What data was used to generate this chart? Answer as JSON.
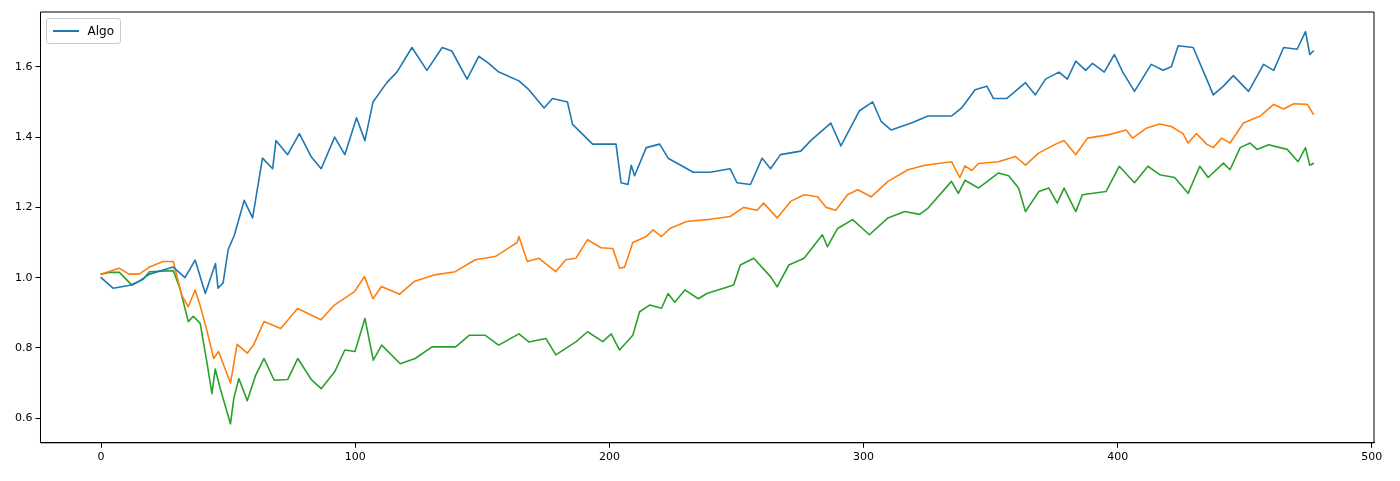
{
  "chart_data": {
    "type": "line",
    "legend": "top left",
    "grid": false,
    "xlim": [
      -23.85,
      500.85
    ],
    "xticks": [
      0,
      100,
      200,
      300,
      400,
      500
    ],
    "ylim": [
      0.53,
      1.756
    ],
    "yticks": [
      {
        "value": 0.6,
        "label": "0.6"
      },
      {
        "value": 0.8,
        "label": "0.8"
      },
      {
        "value": 1.0,
        "label": "1.0"
      },
      {
        "value": 1.2,
        "label": "1.2"
      },
      {
        "value": 1.4,
        "label": "1.4"
      },
      {
        "value": 1.6,
        "label": "1.6"
      }
    ],
    "series": [
      {
        "name": "Algo",
        "color": "#1f77b4",
        "x": [
          0,
          4.7,
          12.5,
          15,
          19,
          28.4,
          33,
          37,
          41,
          45,
          46,
          48,
          50,
          52.4,
          56.3,
          59.6,
          63.5,
          67.5,
          68.8,
          73.4,
          78,
          82.6,
          86.6,
          91.9,
          95.9,
          100.5,
          103.8,
          107,
          112.4,
          116.4,
          122.3,
          128.2,
          134.2,
          138,
          144,
          148.6,
          152.5,
          156.5,
          164.4,
          168.3,
          174.3,
          177.6,
          183.5,
          185.5,
          193.4,
          202.6,
          204.6,
          207.3,
          208.6,
          209.9,
          214.5,
          219.8,
          223.1,
          233,
          239.6,
          247.5,
          250.2,
          255.5,
          260.1,
          263.4,
          267.3,
          275.3,
          279.2,
          287.1,
          291.1,
          298.4,
          303.6,
          306.9,
          310.9,
          318.8,
          325.4,
          334.6,
          338.6,
          343.9,
          348.5,
          351.1,
          356.4,
          363.7,
          367.6,
          371.6,
          376.9,
          380.2,
          383.5,
          387.4,
          390.1,
          394.7,
          398.7,
          402,
          406.6,
          413.2,
          417.8,
          421.1,
          423.8,
          429.7,
          435.6,
          437.6,
          441.6,
          445.5,
          451.5,
          457.4,
          461.4,
          465.3,
          470.6,
          473.9,
          475.6,
          477
        ],
        "values": [
          1.0,
          0.97,
          0.98,
          0.99,
          1.01,
          1.03,
          1.0,
          1.05,
          0.955,
          1.04,
          0.97,
          0.985,
          1.08,
          1.12,
          1.22,
          1.17,
          1.34,
          1.31,
          1.39,
          1.35,
          1.41,
          1.345,
          1.31,
          1.4,
          1.35,
          1.455,
          1.39,
          1.5,
          1.555,
          1.585,
          1.655,
          1.59,
          1.655,
          1.645,
          1.565,
          1.63,
          1.61,
          1.585,
          1.56,
          1.535,
          1.483,
          1.51,
          1.5,
          1.436,
          1.38,
          1.38,
          1.27,
          1.265,
          1.32,
          1.29,
          1.37,
          1.38,
          1.34,
          1.3,
          1.3,
          1.31,
          1.27,
          1.265,
          1.34,
          1.31,
          1.35,
          1.36,
          1.39,
          1.44,
          1.375,
          1.475,
          1.5,
          1.445,
          1.42,
          1.44,
          1.46,
          1.46,
          1.483,
          1.535,
          1.545,
          1.51,
          1.51,
          1.555,
          1.52,
          1.565,
          1.585,
          1.565,
          1.616,
          1.59,
          1.61,
          1.585,
          1.635,
          1.585,
          1.53,
          1.607,
          1.59,
          1.6,
          1.66,
          1.655,
          1.555,
          1.52,
          1.545,
          1.575,
          1.53,
          1.607,
          1.59,
          1.655,
          1.65,
          1.7,
          1.635,
          1.645
        ]
      },
      {
        "color": "#ff7f0e",
        "x": [
          0,
          7,
          11,
          15,
          19,
          24.4,
          28.4,
          31.7,
          34.3,
          37,
          39,
          41.6,
          44.3,
          46.2,
          50.9,
          53.5,
          57.5,
          60.1,
          64.1,
          70.7,
          77.3,
          86.5,
          91.8,
          99.7,
          103.6,
          107,
          110.3,
          117.5,
          123.4,
          131.3,
          139.3,
          147.2,
          155.1,
          163.7,
          164.4,
          167.7,
          172.3,
          178.9,
          182.8,
          186.8,
          191.4,
          196.7,
          201.3,
          204,
          206,
          209.2,
          214.5,
          217.2,
          220.5,
          223.8,
          230.4,
          238.3,
          247.5,
          252.8,
          258.1,
          260.7,
          266,
          271.3,
          276.6,
          281.9,
          285.2,
          289.1,
          293.7,
          297.7,
          303,
          309.6,
          317.5,
          324.1,
          334.6,
          337.9,
          339.9,
          342.6,
          345.2,
          353.1,
          359.7,
          363.7,
          369,
          375.6,
          378.9,
          383.5,
          388.1,
          396.7,
          403.3,
          405.9,
          411.2,
          416.5,
          421.1,
          425.7,
          427.7,
          431,
          435,
          437.6,
          440.9,
          444.2,
          449.5,
          456.1,
          461.4,
          465.3,
          469.3,
          474.6,
          477
        ],
        "values": [
          1.01,
          1.027,
          1.01,
          1.01,
          1.03,
          1.046,
          1.046,
          0.95,
          0.917,
          0.965,
          0.92,
          0.85,
          0.77,
          0.79,
          0.7,
          0.81,
          0.785,
          0.81,
          0.875,
          0.855,
          0.912,
          0.88,
          0.922,
          0.96,
          1.003,
          0.94,
          0.975,
          0.953,
          0.99,
          1.008,
          1.017,
          1.051,
          1.06,
          1.1,
          1.117,
          1.046,
          1.055,
          1.017,
          1.051,
          1.055,
          1.108,
          1.085,
          1.083,
          1.027,
          1.03,
          1.1,
          1.117,
          1.136,
          1.117,
          1.14,
          1.16,
          1.165,
          1.174,
          1.2,
          1.192,
          1.212,
          1.17,
          1.217,
          1.236,
          1.23,
          1.2,
          1.192,
          1.236,
          1.25,
          1.23,
          1.274,
          1.307,
          1.32,
          1.33,
          1.285,
          1.318,
          1.305,
          1.325,
          1.33,
          1.345,
          1.32,
          1.355,
          1.38,
          1.39,
          1.35,
          1.397,
          1.407,
          1.42,
          1.397,
          1.425,
          1.437,
          1.43,
          1.41,
          1.383,
          1.41,
          1.38,
          1.37,
          1.397,
          1.383,
          1.44,
          1.46,
          1.493,
          1.48,
          1.495,
          1.493,
          1.465
        ]
      },
      {
        "color": "#2ca02c",
        "x": [
          0,
          3.3,
          7.2,
          11.9,
          16.5,
          19,
          28.4,
          31,
          34.3,
          36.3,
          39,
          41.6,
          43.6,
          44.9,
          46.9,
          50.9,
          52.2,
          54.2,
          57.5,
          60.8,
          64.1,
          68.1,
          73.4,
          77.4,
          82.7,
          86.6,
          91.9,
          95.9,
          99.9,
          103.8,
          107.1,
          110.4,
          117.7,
          123.6,
          130.2,
          139.5,
          144.8,
          151.2,
          156.4,
          164.4,
          168.3,
          175,
          178.9,
          186.8,
          191.4,
          197.4,
          200.7,
          204,
          209.2,
          211.9,
          215.8,
          220.5,
          223.1,
          225.7,
          229.7,
          235,
          238.3,
          244.9,
          248.9,
          251.5,
          256.8,
          263.4,
          266,
          270.6,
          276.6,
          283.8,
          285.8,
          289.8,
          295.7,
          302.3,
          309.6,
          316.2,
          322.1,
          325.4,
          334.6,
          337.3,
          339.9,
          345.2,
          353.1,
          357.1,
          361,
          363.7,
          369,
          372.9,
          376.2,
          378.9,
          383.5,
          386.1,
          395.4,
          400.6,
          406.6,
          411.9,
          416.5,
          422.4,
          427.7,
          432.3,
          435.6,
          441.6,
          444.2,
          448.2,
          452.1,
          454.8,
          459.4,
          466.7,
          471,
          473.9,
          475.6,
          477
        ],
        "values": [
          1.01,
          1.015,
          1.015,
          0.98,
          0.995,
          1.017,
          1.02,
          0.97,
          0.875,
          0.89,
          0.87,
          0.76,
          0.67,
          0.74,
          0.684,
          0.584,
          0.656,
          0.713,
          0.65,
          0.722,
          0.77,
          0.708,
          0.71,
          0.77,
          0.71,
          0.684,
          0.732,
          0.794,
          0.79,
          0.884,
          0.765,
          0.808,
          0.755,
          0.77,
          0.803,
          0.803,
          0.836,
          0.836,
          0.808,
          0.84,
          0.817,
          0.827,
          0.78,
          0.817,
          0.846,
          0.818,
          0.84,
          0.794,
          0.836,
          0.903,
          0.922,
          0.913,
          0.955,
          0.93,
          0.965,
          0.94,
          0.955,
          0.97,
          0.979,
          1.036,
          1.055,
          1.003,
          0.974,
          1.036,
          1.055,
          1.122,
          1.088,
          1.14,
          1.165,
          1.122,
          1.17,
          1.188,
          1.18,
          1.198,
          1.274,
          1.24,
          1.277,
          1.255,
          1.298,
          1.29,
          1.255,
          1.188,
          1.245,
          1.255,
          1.212,
          1.255,
          1.188,
          1.236,
          1.245,
          1.317,
          1.27,
          1.317,
          1.293,
          1.285,
          1.24,
          1.317,
          1.285,
          1.326,
          1.307,
          1.37,
          1.383,
          1.365,
          1.378,
          1.365,
          1.33,
          1.37,
          1.32,
          1.325
        ]
      }
    ]
  }
}
